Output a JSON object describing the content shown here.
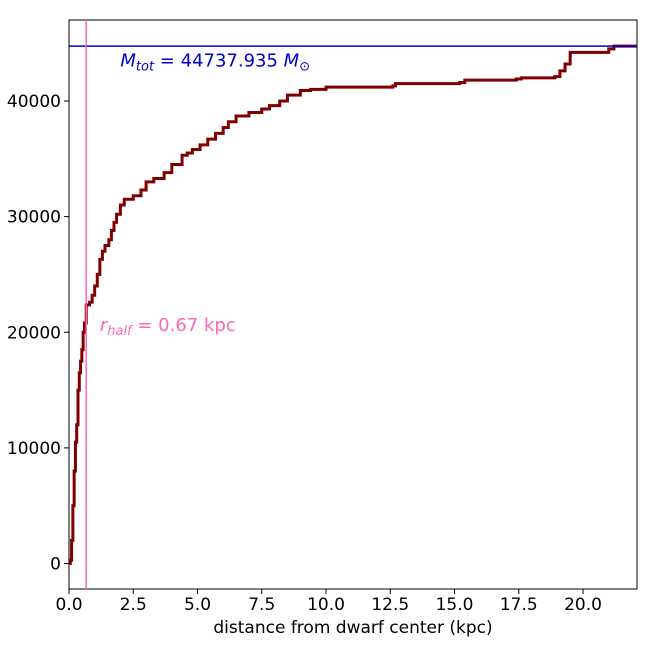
{
  "chart_data": {
    "type": "line",
    "title": "",
    "xlabel": "distance from dwarf center (kpc)",
    "ylabel": "",
    "xlim": [
      0,
      22.1
    ],
    "ylim": [
      -2200,
      47000
    ],
    "x_ticks": [
      0.0,
      2.5,
      5.0,
      7.5,
      10.0,
      12.5,
      15.0,
      17.5,
      20.0
    ],
    "x_tick_labels": [
      "0.0",
      "2.5",
      "5.0",
      "7.5",
      "10.0",
      "12.5",
      "15.0",
      "17.5",
      "20.0"
    ],
    "y_ticks": [
      0,
      10000,
      20000,
      30000,
      40000
    ],
    "y_tick_labels": [
      "0",
      "10000",
      "20000",
      "30000",
      "40000"
    ],
    "grid": false,
    "series": [
      {
        "color": "#800000",
        "step": true,
        "points": [
          [
            0.0,
            0
          ],
          [
            0.05,
            300
          ],
          [
            0.1,
            2000
          ],
          [
            0.15,
            5000
          ],
          [
            0.2,
            8000
          ],
          [
            0.25,
            10500
          ],
          [
            0.3,
            12000
          ],
          [
            0.35,
            15000
          ],
          [
            0.4,
            16500
          ],
          [
            0.45,
            17500
          ],
          [
            0.5,
            18500
          ],
          [
            0.55,
            20000
          ],
          [
            0.6,
            20800
          ],
          [
            0.67,
            22368
          ],
          [
            0.8,
            22600
          ],
          [
            0.9,
            23200
          ],
          [
            1.0,
            24000
          ],
          [
            1.1,
            25000
          ],
          [
            1.2,
            26300
          ],
          [
            1.3,
            27000
          ],
          [
            1.4,
            27500
          ],
          [
            1.55,
            28000
          ],
          [
            1.65,
            28800
          ],
          [
            1.75,
            29500
          ],
          [
            1.85,
            30200
          ],
          [
            2.0,
            31000
          ],
          [
            2.15,
            31500
          ],
          [
            2.5,
            31800
          ],
          [
            2.8,
            32300
          ],
          [
            3.0,
            33000
          ],
          [
            3.3,
            33300
          ],
          [
            3.7,
            33800
          ],
          [
            4.0,
            34500
          ],
          [
            4.4,
            35300
          ],
          [
            4.6,
            35500
          ],
          [
            4.8,
            35800
          ],
          [
            5.1,
            36200
          ],
          [
            5.4,
            36700
          ],
          [
            5.7,
            37200
          ],
          [
            6.0,
            37700
          ],
          [
            6.2,
            38200
          ],
          [
            6.5,
            38700
          ],
          [
            7.0,
            39000
          ],
          [
            7.5,
            39300
          ],
          [
            7.8,
            39600
          ],
          [
            8.2,
            40000
          ],
          [
            8.5,
            40500
          ],
          [
            9.0,
            40900
          ],
          [
            9.4,
            41000
          ],
          [
            10.0,
            41200
          ],
          [
            12.6,
            41300
          ],
          [
            12.7,
            41500
          ],
          [
            15.2,
            41600
          ],
          [
            15.4,
            41800
          ],
          [
            17.4,
            41900
          ],
          [
            17.6,
            42000
          ],
          [
            18.9,
            42100
          ],
          [
            19.1,
            42600
          ],
          [
            19.3,
            43200
          ],
          [
            19.5,
            44200
          ],
          [
            21.0,
            44500
          ],
          [
            21.2,
            44737.935
          ],
          [
            22.1,
            44737.935
          ]
        ]
      }
    ],
    "reference_lines": [
      {
        "orientation": "horizontal",
        "value": 44737.935,
        "color": "#0000cc"
      },
      {
        "orientation": "vertical",
        "value": 0.67,
        "color": "#ff69b4"
      }
    ],
    "annotations": [
      {
        "label_main": "M",
        "label_sub": "tot",
        "label_rest": " = 44737.935 ",
        "label_unit": "M",
        "label_unit_sub": "⊙",
        "at": [
          2.0,
          43000
        ],
        "color": "#0000cc"
      },
      {
        "label_main": "r",
        "label_sub": "half",
        "label_rest": " = 0.67 kpc",
        "at": [
          1.2,
          20100
        ],
        "color": "#ff69b4"
      }
    ]
  }
}
